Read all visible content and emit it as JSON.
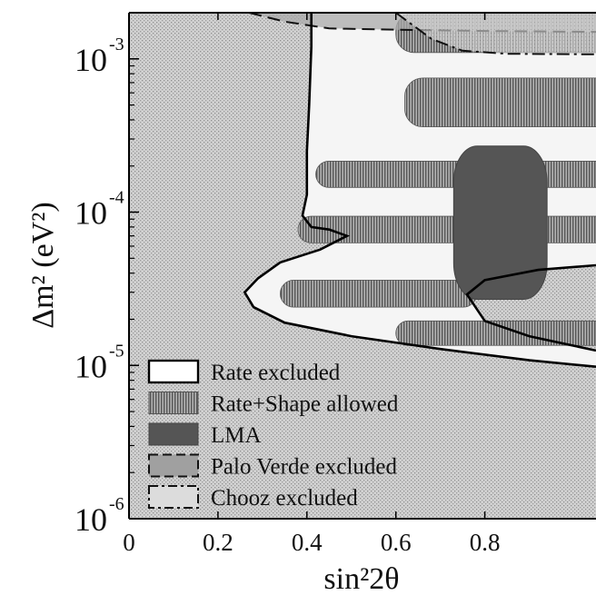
{
  "chart_data": {
    "type": "contour",
    "xlabel": "sin²2θ",
    "ylabel": "Δm² (eV²)",
    "xlim": [
      0,
      1.05
    ],
    "ylim": [
      1e-06,
      0.002
    ],
    "yscale": "log",
    "x_ticks": [
      {
        "value": 0,
        "label": "0"
      },
      {
        "value": 0.2,
        "label": "0.2"
      },
      {
        "value": 0.4,
        "label": "0.4"
      },
      {
        "value": 0.6,
        "label": "0.6"
      },
      {
        "value": 0.8,
        "label": "0.8"
      }
    ],
    "y_ticks": [
      {
        "value": 1e-06,
        "base": "10",
        "exp": "-6"
      },
      {
        "value": 1e-05,
        "base": "10",
        "exp": "-5"
      },
      {
        "value": 0.0001,
        "base": "10",
        "exp": "-4"
      },
      {
        "value": 0.001,
        "base": "10",
        "exp": "-3"
      }
    ],
    "legend_position": "bottom-left",
    "legend": [
      {
        "label": "Rate excluded",
        "style": "solid-outline"
      },
      {
        "label": "Rate+Shape allowed",
        "style": "vertical-hatch"
      },
      {
        "label": "LMA",
        "style": "dark-fill"
      },
      {
        "label": "Palo Verde excluded",
        "style": "dashed-gray"
      },
      {
        "label": "Chooz excluded",
        "style": "dashdot-light"
      }
    ],
    "regions": {
      "rate_excluded_boundary": [
        [
          0.41,
          0.002
        ],
        [
          0.41,
          0.0012
        ],
        [
          0.405,
          0.0005
        ],
        [
          0.4,
          0.00025
        ],
        [
          0.4,
          0.00013
        ],
        [
          0.39,
          9.5e-05
        ],
        [
          0.41,
          8e-05
        ],
        [
          0.45,
          7.7e-05
        ],
        [
          0.49,
          7e-05
        ],
        [
          0.43,
          5.7e-05
        ],
        [
          0.34,
          4.7e-05
        ],
        [
          0.29,
          3.7e-05
        ],
        [
          0.26,
          3e-05
        ],
        [
          0.28,
          2.4e-05
        ],
        [
          0.35,
          1.9e-05
        ],
        [
          0.5,
          1.55e-05
        ],
        [
          0.7,
          1.28e-05
        ],
        [
          0.9,
          1.08e-05
        ],
        [
          1.05,
          9.8e-06
        ]
      ],
      "rate_excluded_inner": [
        [
          1.05,
          1.25e-05
        ],
        [
          0.9,
          1.55e-05
        ],
        [
          0.8,
          1.95e-05
        ],
        [
          0.76,
          2.9e-05
        ],
        [
          0.8,
          3.6e-05
        ],
        [
          0.92,
          4.2e-05
        ],
        [
          1.05,
          4.5e-05
        ]
      ],
      "rate_shape_allowed": [
        {
          "x": [
            0.34,
            0.7
          ],
          "y": [
            2.4e-05,
            3.6e-05
          ]
        },
        {
          "x": [
            0.6,
            1.05
          ],
          "y": [
            1.35e-05,
            1.95e-05
          ]
        },
        {
          "x": [
            0.38,
            1.05
          ],
          "y": [
            6.3e-05,
            9.4e-05
          ]
        },
        {
          "x": [
            0.42,
            1.05
          ],
          "y": [
            0.000145,
            0.000215
          ]
        },
        {
          "x": [
            0.62,
            1.05
          ],
          "y": [
            0.00036,
            0.00075
          ]
        },
        {
          "x": [
            0.6,
            1.05
          ],
          "y": [
            0.0011,
            0.002
          ]
        }
      ],
      "lma": {
        "x": [
          0.73,
          0.94
        ],
        "y": [
          2.7e-05,
          0.00027
        ]
      },
      "palo_verde_boundary": [
        [
          0.27,
          0.002
        ],
        [
          0.35,
          0.00175
        ],
        [
          0.45,
          0.00158
        ],
        [
          0.6,
          0.00155
        ],
        [
          0.8,
          0.00152
        ],
        [
          1.05,
          0.0015
        ]
      ],
      "chooz_boundary": [
        [
          0.6,
          0.002
        ],
        [
          0.68,
          0.00135
        ],
        [
          0.75,
          0.00113
        ],
        [
          0.85,
          0.00108
        ],
        [
          1.05,
          0.00107
        ]
      ]
    }
  }
}
